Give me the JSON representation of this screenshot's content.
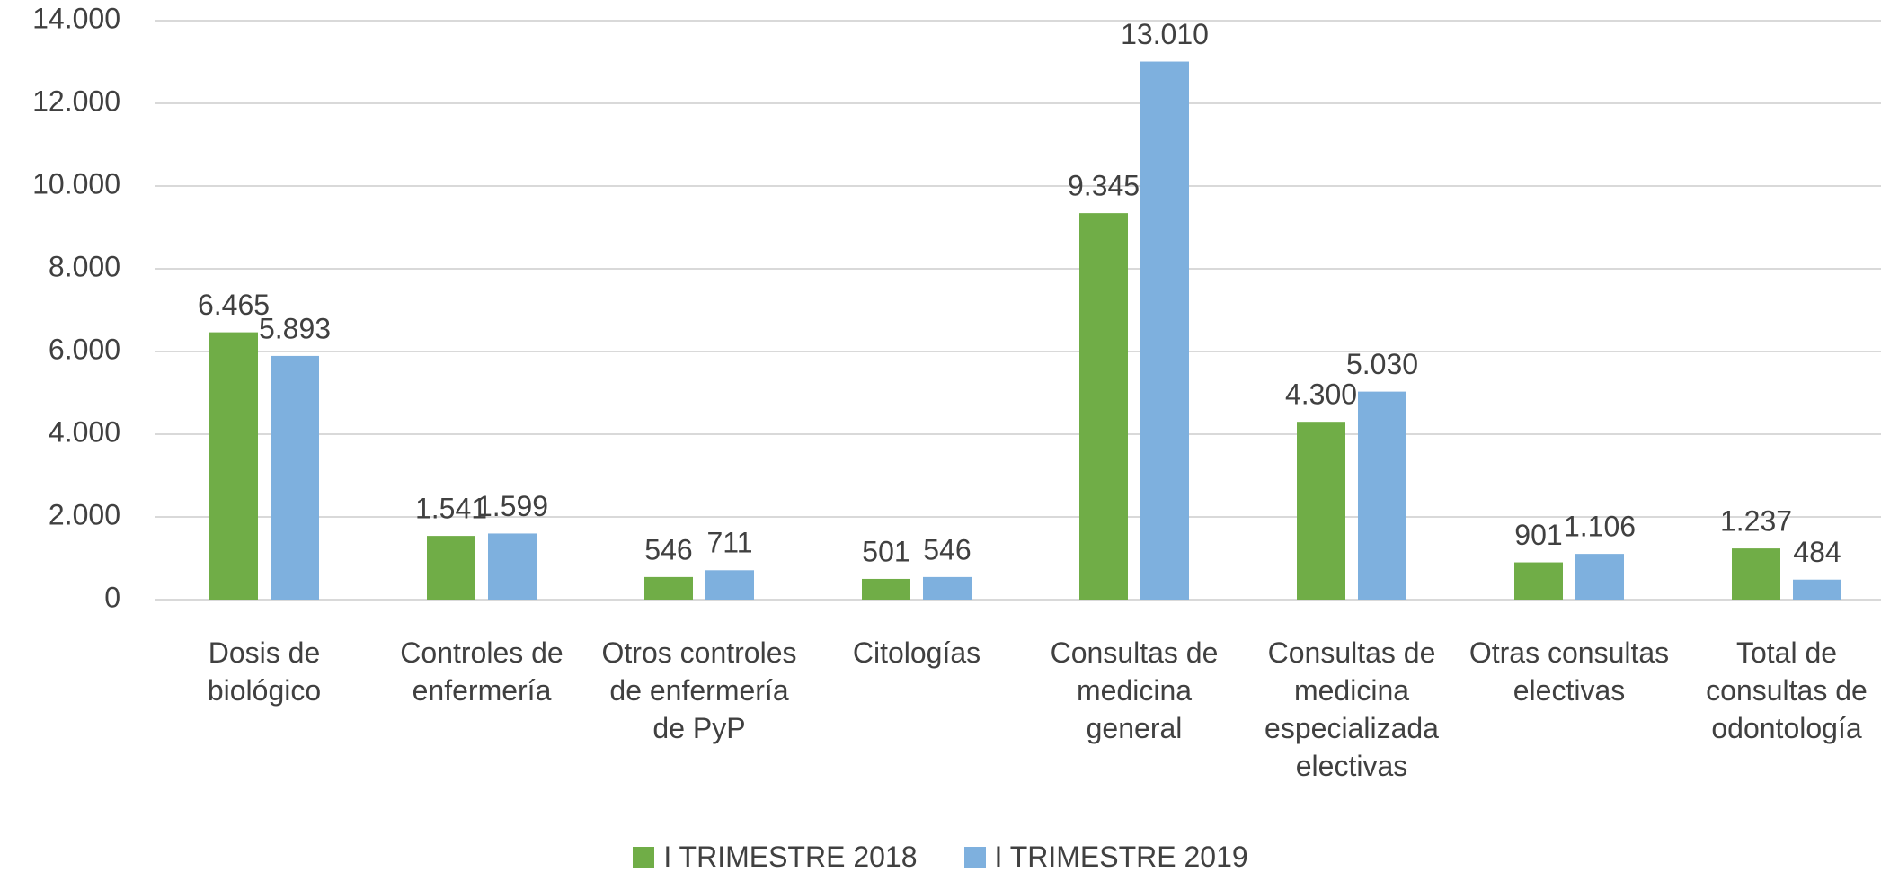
{
  "chart_data": {
    "type": "bar",
    "categories": [
      "Dosis de biológico",
      "Controles de enfermería",
      "Otros controles de enfermería de PyP",
      "Citologías",
      "Consultas de medicina general",
      "Consultas de medicina especializada electivas",
      "Otras consultas electivas",
      "Total de consultas de odontología"
    ],
    "series": [
      {
        "name": "I TRIMESTRE 2018",
        "color": "#70ad47",
        "values": [
          6465,
          1541,
          546,
          501,
          9345,
          4300,
          901,
          1237
        ],
        "value_labels": [
          "6.465",
          "1.541",
          "546",
          "501",
          "9.345",
          "4.300",
          "901",
          "1.237"
        ]
      },
      {
        "name": "I TRIMESTRE 2019",
        "color": "#7eb0de",
        "values": [
          5893,
          1599,
          711,
          546,
          13010,
          5030,
          1106,
          484
        ],
        "value_labels": [
          "5.893",
          "1.599",
          "711",
          "546",
          "13.010",
          "5.030",
          "1.106",
          "484"
        ]
      }
    ],
    "ylim": [
      0,
      14000
    ],
    "yticks": [
      0,
      {
        "value": 2000,
        "label": "2.000"
      },
      {
        "value": 4000,
        "label": "4.000"
      },
      {
        "value": 6000,
        "label": "6.000"
      },
      {
        "value": 8000,
        "label": "8.000"
      },
      {
        "value": 10000,
        "label": "10.000"
      },
      {
        "value": 12000,
        "label": "12.000"
      },
      {
        "value": 14000,
        "label": "14.000"
      }
    ],
    "grid": true,
    "legend": "bottom"
  }
}
